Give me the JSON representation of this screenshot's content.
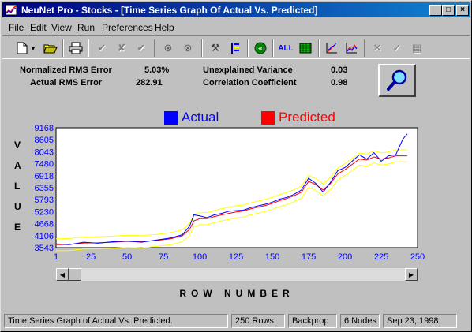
{
  "window": {
    "title": "NeuNet Pro - Stocks - [Time Series Graph Of Actual Vs. Predicted]",
    "minimize": "_",
    "maximize": "□",
    "close": "×"
  },
  "menu": {
    "items": [
      {
        "key": "F",
        "rest": "ile"
      },
      {
        "key": "E",
        "rest": "dit"
      },
      {
        "key": "V",
        "rest": "iew"
      },
      {
        "key": "R",
        "rest": "un"
      },
      {
        "key": "P",
        "rest": "references"
      },
      {
        "key": "H",
        "rest": "elp"
      }
    ]
  },
  "toolbar": {
    "all_label": "ALL",
    "go_label": "GO"
  },
  "stats": {
    "nrms_label": "Normalized RMS Error",
    "nrms_value": "5.03%",
    "arms_label": "Actual RMS Error",
    "arms_value": "282.91",
    "uv_label": "Unexplained Variance",
    "uv_value": "0.03",
    "cc_label": "Correlation Coefficient",
    "cc_value": "0.98"
  },
  "legend": {
    "actual": "Actual",
    "predicted": "Predicted"
  },
  "colors": {
    "actual": "#0000ff",
    "predicted": "#ff0000",
    "band": "#ffff00",
    "axis_text": "#0000ff"
  },
  "axes": {
    "y_letters": [
      "V",
      "A",
      "L",
      "U",
      "E"
    ],
    "x_title": "ROW NUMBER"
  },
  "chart_data": {
    "type": "line",
    "xlabel": "ROW NUMBER",
    "ylabel": "VALUE",
    "xlim": [
      1,
      250
    ],
    "ylim": [
      3543,
      9168
    ],
    "x_ticks": [
      1,
      25,
      50,
      75,
      100,
      125,
      150,
      175,
      200,
      225,
      250
    ],
    "y_ticks": [
      3543,
      4106,
      4668,
      5230,
      5793,
      6355,
      6918,
      7480,
      8043,
      8605,
      9168
    ],
    "grid": false,
    "legend_position": "top",
    "x": [
      1,
      10,
      20,
      30,
      40,
      50,
      60,
      70,
      80,
      88,
      93,
      96,
      100,
      105,
      110,
      115,
      120,
      125,
      130,
      135,
      140,
      145,
      150,
      155,
      160,
      165,
      170,
      175,
      180,
      185,
      190,
      195,
      200,
      205,
      210,
      215,
      220,
      225,
      230,
      235,
      240,
      243
    ],
    "series": [
      {
        "name": "Actual",
        "values": [
          3720,
          3680,
          3800,
          3750,
          3820,
          3850,
          3800,
          3900,
          4000,
          4150,
          4550,
          5080,
          5030,
          4950,
          5080,
          5150,
          5250,
          5280,
          5300,
          5420,
          5500,
          5580,
          5680,
          5820,
          5900,
          6050,
          6250,
          6800,
          6550,
          6150,
          6600,
          7150,
          7300,
          7600,
          7900,
          7700,
          8000,
          7600,
          7850,
          7900,
          8650,
          8880
        ]
      },
      {
        "name": "Predicted",
        "values": [
          3680,
          3690,
          3760,
          3770,
          3800,
          3840,
          3820,
          3880,
          3960,
          4100,
          4400,
          4800,
          4900,
          4900,
          5000,
          5080,
          5150,
          5220,
          5260,
          5360,
          5440,
          5520,
          5620,
          5750,
          5850,
          5980,
          6150,
          6650,
          6500,
          6250,
          6550,
          7000,
          7200,
          7450,
          7700,
          7650,
          7800,
          7700,
          7750,
          7850,
          7850,
          7850
        ]
      }
    ]
  },
  "status": {
    "message": "Time Series Graph of Actual Vs. Predicted.",
    "rows": "250 Rows",
    "method": "Backprop",
    "nodes": "6 Nodes",
    "date": "Sep 23, 1998"
  }
}
